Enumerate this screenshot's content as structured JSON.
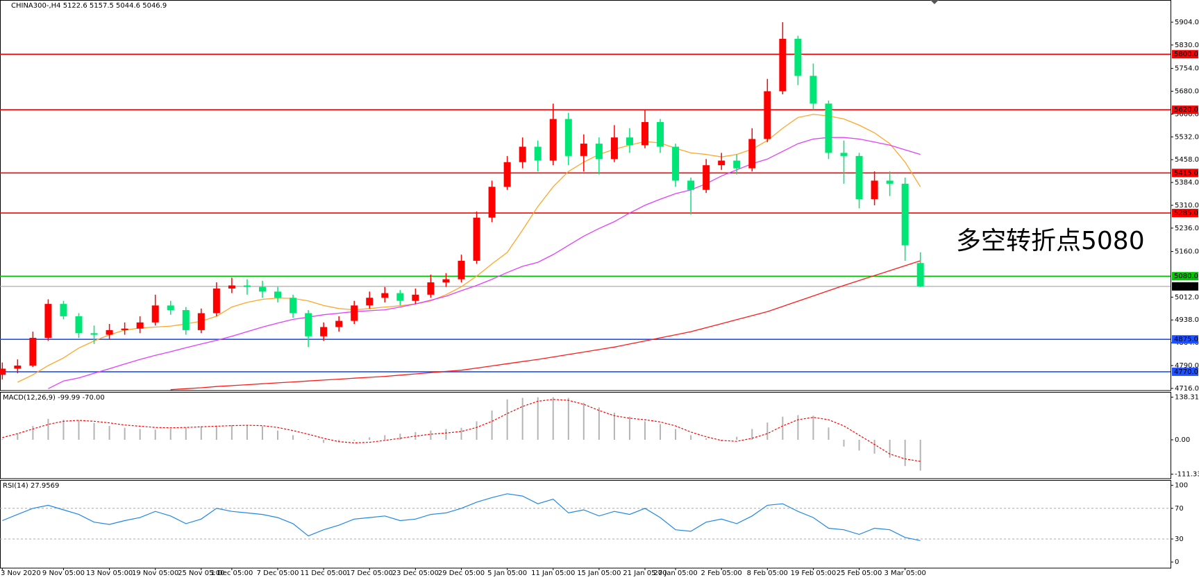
{
  "chart_data": [
    {
      "type": "candlestick",
      "title": "CHINA300-,H4  5122.6 5157.5 5044.6 5046.9",
      "categories": [
        "3 Nov 2020",
        null,
        null,
        null,
        "9 Nov 05:00",
        null,
        null,
        "13 Nov 05:00",
        null,
        null,
        "19 Nov 05:00",
        null,
        null,
        "25 Nov 05:00",
        null,
        "1 Dec 05:00",
        null,
        null,
        "7 Dec 05:00",
        null,
        null,
        "11 Dec 05:00",
        null,
        null,
        "17 Dec 05:00",
        null,
        null,
        "23 Dec 05:00",
        null,
        null,
        "29 Dec 05:00",
        null,
        null,
        "5 Jan 05:00",
        null,
        null,
        "11 Jan 05:00",
        null,
        null,
        "15 Jan 05:00",
        null,
        null,
        "21 Jan 05:00",
        null,
        "27 Jan 05:00",
        null,
        null,
        "2 Feb 05:00",
        null,
        null,
        "8 Feb 05:00",
        null,
        null,
        "19 Feb 05:00",
        null,
        null,
        "25 Feb 05:00",
        null,
        null,
        "3 Mar 05:00",
        null
      ],
      "open": [
        4760,
        4780,
        4790,
        4880,
        4990,
        4950,
        4895,
        4890,
        4905,
        4910,
        4930,
        4985,
        4970,
        4905,
        4960,
        5040,
        5050,
        5045,
        5030,
        5010,
        4960,
        4885,
        4915,
        4935,
        4985,
        5010,
        5025,
        5000,
        5020,
        5060,
        5070,
        5130,
        5270,
        5370,
        5450,
        5500,
        5455,
        5590,
        5470,
        5510,
        5460,
        5530,
        5505,
        5580,
        5500,
        5390,
        5360,
        5440,
        5455,
        5430,
        5525,
        5680,
        5850,
        5730,
        5640,
        5480,
        5470,
        5330,
        5390,
        5380,
        5122.6
      ],
      "high": [
        4800,
        4810,
        4900,
        5005,
        5000,
        4960,
        4920,
        4925,
        4930,
        4950,
        5020,
        5000,
        4980,
        4975,
        5060,
        5075,
        5070,
        5065,
        5045,
        5020,
        4970,
        4930,
        4950,
        5000,
        5030,
        5045,
        5035,
        5040,
        5085,
        5090,
        5150,
        5290,
        5390,
        5470,
        5530,
        5520,
        5640,
        5610,
        5540,
        5530,
        5570,
        5560,
        5620,
        5590,
        5510,
        5400,
        5460,
        5480,
        5475,
        5560,
        5720,
        5904,
        5860,
        5770,
        5650,
        5520,
        5480,
        5420,
        5420,
        5400,
        5157.5
      ],
      "low": [
        4745,
        4765,
        4785,
        4870,
        4940,
        4880,
        4860,
        4875,
        4890,
        4895,
        4920,
        4955,
        4890,
        4895,
        4950,
        5025,
        5020,
        5010,
        4995,
        4945,
        4850,
        4870,
        4900,
        4925,
        4975,
        4995,
        4985,
        4990,
        5010,
        5045,
        5060,
        5120,
        5255,
        5360,
        5430,
        5420,
        5440,
        5440,
        5420,
        5410,
        5450,
        5480,
        5495,
        5480,
        5370,
        5280,
        5350,
        5425,
        5410,
        5420,
        5515,
        5670,
        5700,
        5620,
        5460,
        5380,
        5300,
        5310,
        5340,
        5130,
        5044.6
      ],
      "close": [
        4780,
        4790,
        4880,
        4990,
        4950,
        4895,
        4890,
        4905,
        4910,
        4930,
        4985,
        4970,
        4905,
        4960,
        5040,
        5050,
        5045,
        5030,
        5010,
        4960,
        4885,
        4915,
        4935,
        4985,
        5010,
        5025,
        5000,
        5020,
        5060,
        5070,
        5130,
        5270,
        5370,
        5450,
        5500,
        5455,
        5590,
        5470,
        5510,
        5460,
        5530,
        5505,
        5580,
        5500,
        5390,
        5360,
        5440,
        5455,
        5430,
        5525,
        5680,
        5850,
        5730,
        5640,
        5480,
        5470,
        5330,
        5390,
        5380,
        5180,
        5046.9
      ],
      "up_color": "#ff0000",
      "down_color": "#00e676",
      "lines": [
        {
          "color": "#ffa726",
          "values": [
            null,
            4736,
            4760,
            4790,
            4815,
            4847,
            4870,
            4890,
            4905,
            4912,
            4915,
            4918,
            4925,
            4934,
            4950,
            4980,
            4995,
            5005,
            5009,
            5008,
            5000,
            4985,
            4975,
            4971,
            4975,
            4980,
            4984,
            4990,
            5000,
            5020,
            5046,
            5080,
            5120,
            5157,
            5230,
            5306,
            5370,
            5420,
            5450,
            5475,
            5492,
            5505,
            5517,
            5512,
            5495,
            5480,
            5475,
            5467,
            5475,
            5492,
            5520,
            5560,
            5595,
            5605,
            5600,
            5590,
            5570,
            5545,
            5510,
            5450,
            5370
          ]
        },
        {
          "color": "#e040fb",
          "values": [
            null,
            null,
            null,
            4715,
            4740,
            4750,
            4765,
            4780,
            4795,
            4810,
            4823,
            4835,
            4848,
            4860,
            4872,
            4885,
            4900,
            4915,
            4928,
            4940,
            4947,
            4955,
            4960,
            4965,
            4968,
            4971,
            4980,
            4990,
            5002,
            5015,
            5033,
            5050,
            5070,
            5092,
            5112,
            5125,
            5150,
            5180,
            5210,
            5235,
            5257,
            5285,
            5310,
            5330,
            5348,
            5360,
            5380,
            5405,
            5425,
            5445,
            5460,
            5485,
            5510,
            5525,
            5530,
            5530,
            5525,
            5515,
            5505,
            5490,
            5475
          ]
        },
        {
          "color": "#ff1a1a",
          "values": [
            null,
            null,
            null,
            null,
            null,
            null,
            null,
            null,
            null,
            null,
            null,
            4712,
            4715,
            4718,
            4722,
            4725,
            4728,
            4731,
            4734,
            4737,
            4740,
            4743,
            4746,
            4749,
            4752,
            4755,
            4759,
            4763,
            4767,
            4771,
            4775,
            4782,
            4789,
            4796,
            4803,
            4810,
            4818,
            4826,
            4834,
            4842,
            4850,
            4860,
            4870,
            4880,
            4890,
            4900,
            4913,
            4926,
            4939,
            4952,
            4965,
            4982,
            4999,
            5016,
            5033,
            5050,
            5066,
            5082,
            5098,
            5114,
            5130
          ]
        }
      ],
      "levels": [
        {
          "value": 5800,
          "label": "5800.0",
          "color": "#ff0000"
        },
        {
          "value": 5620,
          "label": "5620.0",
          "color": "#ff0000"
        },
        {
          "value": 5415,
          "label": "5415.0",
          "color": "#ff0000"
        },
        {
          "value": 5285,
          "label": "5285.0",
          "color": "#ff0000"
        },
        {
          "value": 5080,
          "label": "5080.0",
          "color": "#00c800"
        },
        {
          "value": 4875,
          "label": "4875.0",
          "color": "#1e50ff"
        },
        {
          "value": 4770,
          "label": "4770.0",
          "color": "#1e50ff"
        }
      ],
      "last_price": 5046.9,
      "annotation": {
        "text": "多空转折点5080",
        "color": "#ff0000"
      },
      "ylim": [
        4709,
        5976
      ],
      "yticks": [
        {
          "value": 5904,
          "label": "5904.0"
        },
        {
          "value": 5830,
          "label": "5830.0"
        },
        {
          "value": 5754,
          "label": "5754.0"
        },
        {
          "value": 5680,
          "label": "5680.0"
        },
        {
          "value": 5606,
          "label": "5606.0"
        },
        {
          "value": 5532,
          "label": "5532.0"
        },
        {
          "value": 5458,
          "label": "5458.0"
        },
        {
          "value": 5384,
          "label": "5384.0"
        },
        {
          "value": 5310,
          "label": "5310.0"
        },
        {
          "value": 5236,
          "label": "5236.0"
        },
        {
          "value": 5160,
          "label": "5160.0"
        },
        {
          "value": 5012,
          "label": "5012.0"
        },
        {
          "value": 4938,
          "label": "4938.0"
        },
        {
          "value": 4864,
          "label": "4864.0"
        },
        {
          "value": 4790,
          "label": "4790.0"
        },
        {
          "value": 4716,
          "label": "4716.0"
        }
      ]
    },
    {
      "type": "macd",
      "title": "MACD(12,26,9) -99.99 -70.00",
      "histogram": [
        2,
        20,
        45,
        68,
        65,
        63,
        55,
        45,
        39,
        35,
        33,
        36,
        40,
        44,
        46,
        48,
        46,
        44,
        30,
        15,
        2,
        -10,
        -8,
        -3,
        8,
        15,
        20,
        25,
        30,
        35,
        39,
        60,
        95,
        131,
        136,
        138,
        138,
        136,
        120,
        105,
        88,
        75,
        60,
        51,
        35,
        15,
        5,
        -5,
        10,
        35,
        56,
        75,
        80,
        78,
        40,
        -22,
        -35,
        -45,
        -58,
        -85,
        -99.99
      ],
      "signal": [
        7,
        20,
        35,
        50,
        60,
        63,
        60,
        55,
        48,
        44,
        40,
        39,
        40,
        42,
        44,
        46,
        47,
        46,
        40,
        30,
        18,
        5,
        -6,
        -10,
        -8,
        -2,
        5,
        12,
        18,
        22,
        27,
        40,
        60,
        85,
        108,
        125,
        131,
        128,
        115,
        95,
        78,
        70,
        65,
        58,
        45,
        25,
        10,
        -2,
        -5,
        5,
        20,
        45,
        65,
        73,
        65,
        45,
        15,
        -15,
        -46,
        -62,
        -70
      ],
      "hist_color": "#b4b4b4",
      "signal_color": "#ff0000",
      "ylim": [
        -126,
        153
      ],
      "yticks": [
        138.31,
        {
          "value": 0,
          "label": "0.00"
        },
        -111.33
      ]
    },
    {
      "type": "rsi",
      "title": "RSI(14) 27.9569",
      "values": [
        54,
        62,
        70,
        74,
        68,
        62,
        52,
        49,
        54,
        58,
        66,
        60,
        50,
        56,
        70,
        66,
        64,
        62,
        58,
        50,
        34,
        42,
        48,
        56,
        58,
        60,
        54,
        56,
        62,
        64,
        70,
        78,
        84,
        89,
        86,
        76,
        82,
        64,
        68,
        60,
        66,
        62,
        70,
        58,
        42,
        40,
        52,
        56,
        50,
        60,
        74,
        76,
        66,
        58,
        44,
        42,
        36,
        44,
        42,
        32,
        27.9569
      ],
      "color": "#1e88e5",
      "levels": [
        70,
        30
      ],
      "ylim": [
        -8,
        106
      ],
      "yticks": [
        100,
        70,
        30,
        0
      ]
    }
  ]
}
